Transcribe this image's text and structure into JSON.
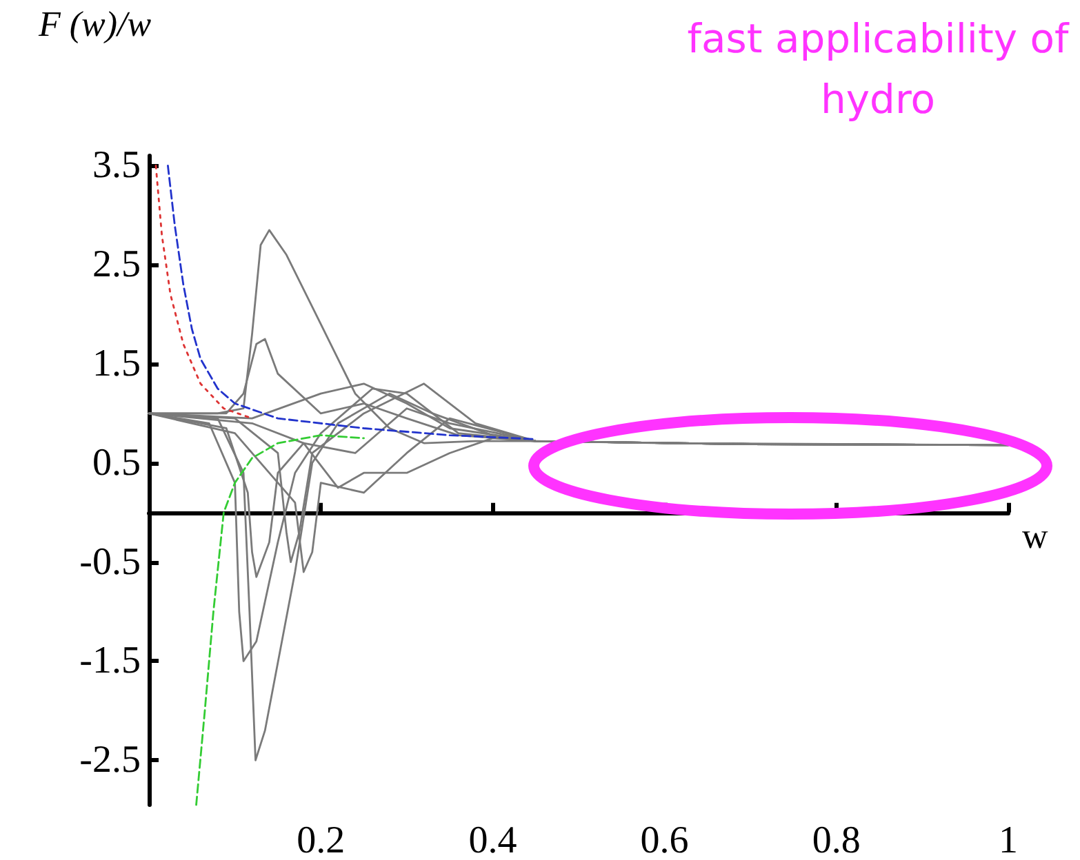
{
  "chart_data": {
    "type": "line",
    "xlabel": "w",
    "ylabel": "F (w)/w",
    "xlim": [
      0,
      1
    ],
    "xticks": [
      0.2,
      0.4,
      0.6,
      0.8,
      1
    ],
    "ylim": [
      -2.95,
      3.6
    ],
    "yticks": [
      -2.5,
      -1.5,
      -0.5,
      0.5,
      1.5,
      2.5,
      3.5
    ],
    "grid": false,
    "marker": "none",
    "annotations": [
      "fast applicability of hydro"
    ],
    "series": [
      {
        "color": "#7a7a7a",
        "line_style": "solid",
        "x": [
          0,
          0.08,
          0.11,
          0.12,
          0.13,
          0.14,
          0.16,
          0.2,
          0.24,
          0.28,
          0.32,
          0.38,
          0.45,
          0.6,
          0.8,
          1
        ],
        "values": [
          1,
          1,
          1.05,
          1.8,
          2.7,
          2.85,
          2.6,
          1.9,
          1.2,
          0.85,
          0.7,
          0.72,
          0.72,
          0.7,
          0.69,
          0.68
        ]
      },
      {
        "color": "#7a7a7a",
        "line_style": "solid",
        "x": [
          0,
          0.09,
          0.11,
          0.125,
          0.135,
          0.15,
          0.2,
          0.25,
          0.3,
          0.36,
          0.45,
          0.7,
          1
        ],
        "values": [
          1,
          1,
          1.2,
          1.7,
          1.75,
          1.4,
          1,
          1.1,
          0.95,
          0.78,
          0.72,
          0.69,
          0.68
        ]
      },
      {
        "color": "#7a7a7a",
        "line_style": "solid",
        "x": [
          0,
          0.08,
          0.11,
          0.117,
          0.124,
          0.135,
          0.17,
          0.19,
          0.22,
          0.28,
          0.33,
          0.4,
          0.45,
          0.7,
          1
        ],
        "values": [
          1,
          0.95,
          0.4,
          -1,
          -2.5,
          -2.2,
          -0.6,
          0.5,
          0.9,
          1.2,
          1,
          0.78,
          0.72,
          0.69,
          0.68
        ]
      },
      {
        "color": "#7a7a7a",
        "line_style": "solid",
        "x": [
          0,
          0.07,
          0.1,
          0.105,
          0.11,
          0.125,
          0.15,
          0.17,
          0.2,
          0.26,
          0.3,
          0.36,
          0.45,
          0.7,
          1
        ],
        "values": [
          1,
          0.9,
          0.3,
          -1,
          -1.5,
          -1.3,
          -0.3,
          0.4,
          0.8,
          1.25,
          1.2,
          0.8,
          0.72,
          0.69,
          0.68
        ]
      },
      {
        "color": "#7a7a7a",
        "line_style": "solid",
        "x": [
          0,
          0.09,
          0.115,
          0.12,
          0.125,
          0.14,
          0.15,
          0.18,
          0.24,
          0.3,
          0.35,
          0.45,
          0.7,
          1
        ],
        "values": [
          1,
          0.85,
          0.2,
          -0.4,
          -0.65,
          -0.3,
          0.4,
          0.7,
          0.6,
          1.05,
          0.9,
          0.72,
          0.69,
          0.68
        ]
      },
      {
        "color": "#7a7a7a",
        "line_style": "solid",
        "x": [
          0,
          0.1,
          0.17,
          0.18,
          0.19,
          0.2,
          0.25,
          0.3,
          0.35,
          0.45,
          0.7,
          1
        ],
        "values": [
          1,
          0.8,
          0.1,
          -0.6,
          -0.4,
          0.3,
          0.2,
          0.6,
          0.95,
          0.72,
          0.69,
          0.68
        ]
      },
      {
        "color": "#7a7a7a",
        "line_style": "solid",
        "x": [
          0,
          0.12,
          0.2,
          0.25,
          0.3,
          0.35,
          0.45,
          0.7,
          1
        ],
        "values": [
          1,
          0.95,
          1.2,
          1.3,
          1.1,
          0.85,
          0.72,
          0.69,
          0.68
        ]
      },
      {
        "color": "#7a7a7a",
        "line_style": "solid",
        "x": [
          0,
          0.12,
          0.18,
          0.22,
          0.25,
          0.3,
          0.35,
          0.4,
          0.45,
          0.7,
          1
        ],
        "values": [
          1,
          0.9,
          0.7,
          0.25,
          0.4,
          0.4,
          0.6,
          0.75,
          0.72,
          0.69,
          0.68
        ]
      },
      {
        "color": "#7a7a7a",
        "line_style": "solid",
        "x": [
          0,
          0.1,
          0.15,
          0.16,
          0.165,
          0.175,
          0.19,
          0.25,
          0.32,
          0.38,
          0.45,
          0.7,
          1
        ],
        "values": [
          1,
          0.95,
          0.6,
          -0.2,
          -0.5,
          -0.2,
          0.6,
          1,
          1.3,
          0.9,
          0.72,
          0.69,
          0.68
        ]
      },
      {
        "color": "#2233cc",
        "line_style": "dashed",
        "x": [
          0.022,
          0.03,
          0.04,
          0.05,
          0.06,
          0.08,
          0.1,
          0.15,
          0.25,
          0.35,
          0.45
        ],
        "values": [
          3.5,
          2.9,
          2.3,
          1.85,
          1.55,
          1.25,
          1.1,
          0.95,
          0.85,
          0.78,
          0.74
        ]
      },
      {
        "color": "#dd3333",
        "line_style": "dotted",
        "x": [
          0.008,
          0.015,
          0.025,
          0.04,
          0.06,
          0.087,
          0.12
        ],
        "values": [
          3.5,
          2.8,
          2.2,
          1.7,
          1.3,
          1.05,
          0.95
        ]
      },
      {
        "color": "#33cc33",
        "line_style": "dashed",
        "x": [
          0.055,
          0.065,
          0.075,
          0.087,
          0.1,
          0.12,
          0.15,
          0.2,
          0.25
        ],
        "values": [
          -2.95,
          -2,
          -1,
          0,
          0.3,
          0.55,
          0.7,
          0.78,
          0.75
        ]
      }
    ]
  }
}
